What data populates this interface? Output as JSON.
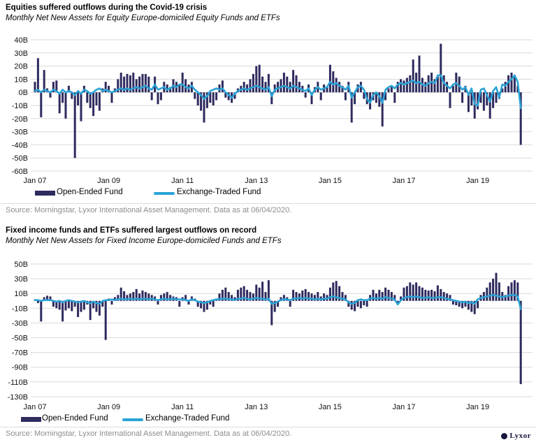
{
  "page": {
    "background": "#ffffff",
    "logo_text": "Lyxor"
  },
  "charts": [
    {
      "title": "Equities suffered outflows during the Covid-19 crisis",
      "subtitle": "Monthly Net New Assets for Equity Europe-domiciled Equity Funds and ETFs",
      "source": "Source: Morningstar, Lyxor International Asset Management. Data as at 06/04/2020.",
      "legend": [
        {
          "label": "Open-Ended Fund",
          "color": "#2e2b5e",
          "type": "bar"
        },
        {
          "label": "Exchange-Traded Fund",
          "color": "#2aa3d6",
          "type": "line"
        }
      ],
      "chart_data": {
        "type": "bar+line",
        "x_start": "Jan 2007",
        "x_end": "Mar 2020",
        "x_frequency": "monthly",
        "x_tick_labels": [
          "Jan 07",
          "Jan 09",
          "Jan 11",
          "Jan 13",
          "Jan 15",
          "Jan 17",
          "Jan 19"
        ],
        "tick_month_indices": [
          0,
          24,
          48,
          72,
          96,
          120,
          144
        ],
        "ylim": [
          -60,
          40
        ],
        "ytick_step": 10,
        "y_unit": "B",
        "grid": "horizontal",
        "legend_position": "bottom",
        "series": [
          {
            "name": "Open-Ended Fund",
            "type": "bar",
            "color": "#2e2b5e",
            "values": [
              8,
              26,
              -19,
              17,
              3,
              -4,
              8,
              9,
              -16,
              -8,
              -20,
              5,
              -5,
              -50,
              -10,
              -22,
              5,
              -8,
              -12,
              -18,
              -10,
              -14,
              3,
              8,
              5,
              -8,
              3,
              10,
              15,
              12,
              14,
              13,
              15,
              10,
              12,
              14,
              14,
              12,
              -6,
              12,
              -9,
              -6,
              8,
              6,
              4,
              10,
              8,
              6,
              15,
              10,
              6,
              8,
              -5,
              -10,
              -14,
              -23,
              -12,
              -8,
              -10,
              -6,
              6,
              9,
              -4,
              -6,
              -8,
              -5,
              3,
              5,
              8,
              6,
              10,
              14,
              20,
              21,
              12,
              8,
              14,
              -9,
              6,
              8,
              10,
              15,
              12,
              8,
              17,
              13,
              8,
              5,
              -4,
              6,
              -9,
              4,
              8,
              -6,
              6,
              4,
              21,
              16,
              11,
              8,
              5,
              -6,
              8,
              -23,
              -9,
              6,
              8,
              -5,
              -9,
              -13,
              -6,
              -8,
              -11,
              -26,
              -6,
              3,
              5,
              -8,
              8,
              10,
              9,
              11,
              13,
              25,
              15,
              28,
              11,
              8,
              13,
              15,
              10,
              12,
              37,
              13,
              8,
              -12,
              5,
              15,
              12,
              -8,
              5,
              -15,
              -10,
              -20,
              -13,
              -8,
              -14,
              -10,
              -20,
              -12,
              -8,
              -5,
              3,
              8,
              13,
              15,
              13,
              5,
              -40
            ]
          },
          {
            "name": "Exchange-Traded Fund",
            "type": "line",
            "color": "#2aa3d6",
            "values": [
              1,
              2,
              0,
              2,
              1,
              0,
              2,
              1,
              -1,
              2,
              0,
              1,
              0,
              -2,
              1,
              -1,
              2,
              1,
              -1,
              0,
              2,
              3,
              1,
              2,
              1,
              0,
              1,
              2,
              3,
              2,
              3,
              2,
              3,
              4,
              3,
              4,
              5,
              3,
              2,
              6,
              2,
              3,
              4,
              2,
              3,
              5,
              4,
              6,
              6,
              4,
              3,
              5,
              2,
              0,
              -2,
              -5,
              -3,
              1,
              2,
              3,
              2,
              3,
              0,
              -2,
              -4,
              -1,
              1,
              2,
              3,
              2,
              3,
              4,
              5,
              4,
              3,
              2,
              4,
              -3,
              2,
              3,
              4,
              5,
              4,
              3,
              5,
              4,
              3,
              2,
              1,
              3,
              -2,
              2,
              4,
              2,
              3,
              4,
              8,
              6,
              7,
              5,
              4,
              2,
              5,
              -4,
              0,
              4,
              5,
              2,
              -5,
              -8,
              -2,
              0,
              -3,
              -8,
              2,
              4,
              5,
              3,
              6,
              7,
              6,
              7,
              8,
              9,
              7,
              8,
              6,
              5,
              7,
              8,
              7,
              13,
              13,
              7,
              5,
              3,
              6,
              7,
              5,
              2,
              4,
              -2,
              3,
              -9,
              -10,
              2,
              3,
              -2,
              -7,
              1,
              4,
              -4,
              6,
              5,
              8,
              10,
              13,
              8,
              -12
            ]
          }
        ]
      }
    },
    {
      "title": "Fixed income funds and ETFs suffered largest outflows on record",
      "subtitle": "Monthly Net New Assets for Fixed Income Europe-domiciled Funds and ETFs",
      "source": "Source: Morningstar, Lyxor International Asset Management. Data as at 06/04/2020.",
      "legend": [
        {
          "label": "Open-Ended Fund",
          "color": "#2e2b5e",
          "type": "bar"
        },
        {
          "label": "Exchange-Traded Fund",
          "color": "#2aa3d6",
          "type": "line"
        }
      ],
      "chart_data": {
        "type": "bar+line",
        "x_start": "Jan 2007",
        "x_end": "Mar 2020",
        "x_frequency": "monthly",
        "x_tick_labels": [
          "Jan 07",
          "Jan 09",
          "Jan 11",
          "Jan 13",
          "Jan 15",
          "Jan 17",
          "Jan 19"
        ],
        "tick_month_indices": [
          0,
          24,
          48,
          72,
          96,
          120,
          144
        ],
        "ylim": [
          -130,
          50
        ],
        "ytick_step": 20,
        "y_unit": "B",
        "grid": "horizontal",
        "legend_position": "bottom",
        "series": [
          {
            "name": "Open-Ended Fund",
            "type": "bar",
            "color": "#2e2b5e",
            "values": [
              2,
              -3,
              -28,
              5,
              7,
              6,
              -8,
              -10,
              -12,
              -28,
              -13,
              -10,
              -14,
              -8,
              -22,
              -15,
              -12,
              -5,
              -26,
              -10,
              -15,
              -20,
              -8,
              -53,
              3,
              -5,
              5,
              8,
              18,
              13,
              8,
              10,
              12,
              16,
              10,
              14,
              12,
              10,
              8,
              6,
              -5,
              8,
              10,
              12,
              8,
              6,
              5,
              -8,
              5,
              8,
              -5,
              6,
              3,
              -8,
              -10,
              -15,
              -12,
              -5,
              -8,
              3,
              10,
              15,
              18,
              12,
              8,
              5,
              15,
              18,
              20,
              15,
              12,
              10,
              22,
              18,
              26,
              12,
              28,
              -33,
              -15,
              -8,
              5,
              8,
              5,
              -8,
              15,
              12,
              10,
              14,
              16,
              12,
              10,
              8,
              12,
              6,
              10,
              8,
              18,
              25,
              27,
              20,
              12,
              8,
              -8,
              -12,
              -14,
              -8,
              -10,
              -6,
              -8,
              8,
              15,
              10,
              15,
              12,
              18,
              15,
              12,
              8,
              -3,
              6,
              18,
              20,
              25,
              22,
              25,
              20,
              18,
              15,
              14,
              15,
              13,
              21,
              16,
              12,
              10,
              8,
              -5,
              -6,
              -8,
              -10,
              -8,
              -12,
              -15,
              -18,
              -10,
              8,
              12,
              18,
              25,
              30,
              38,
              25,
              12,
              8,
              20,
              25,
              28,
              25,
              -113
            ]
          },
          {
            "name": "Exchange-Traded Fund",
            "type": "line",
            "color": "#2aa3d6",
            "values": [
              1,
              1,
              0,
              1,
              1,
              1,
              0,
              -1,
              0,
              -2,
              0,
              1,
              0,
              -1,
              -2,
              -1,
              0,
              -2,
              -3,
              -1,
              -3,
              -4,
              0,
              1,
              1,
              2,
              1,
              2,
              3,
              2,
              2,
              3,
              2,
              3,
              2,
              3,
              3,
              2,
              3,
              2,
              1,
              2,
              3,
              2,
              2,
              3,
              2,
              2,
              2,
              1,
              0,
              2,
              1,
              -1,
              -2,
              -3,
              -2,
              0,
              1,
              2,
              2,
              3,
              3,
              2,
              2,
              1,
              3,
              3,
              4,
              3,
              2,
              3,
              4,
              3,
              3,
              2,
              3,
              -4,
              -3,
              -1,
              1,
              2,
              2,
              1,
              3,
              3,
              4,
              3,
              4,
              3,
              3,
              2,
              3,
              2,
              3,
              3,
              5,
              6,
              5,
              4,
              3,
              2,
              -2,
              -4,
              -3,
              1,
              2,
              1,
              1,
              3,
              4,
              3,
              4,
              3,
              5,
              4,
              3,
              2,
              -5,
              1,
              4,
              5,
              6,
              5,
              6,
              5,
              4,
              4,
              5,
              4,
              4,
              5,
              5,
              4,
              3,
              2,
              1,
              0,
              -1,
              -2,
              -1,
              -3,
              -2,
              -4,
              2,
              4,
              5,
              6,
              7,
              8,
              7,
              6,
              5,
              6,
              7,
              8,
              8,
              6,
              -11
            ]
          }
        ]
      }
    }
  ]
}
